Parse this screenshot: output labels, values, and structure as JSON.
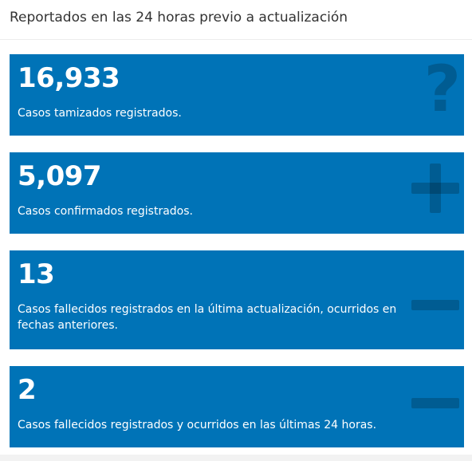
{
  "header": {
    "title": "Reportados en las 24 horas previo a actualización"
  },
  "cards": [
    {
      "value": "16,933",
      "description": "Casos tamizados registrados.",
      "icon": "question-icon"
    },
    {
      "value": "5,097",
      "description": "Casos confirmados registrados.",
      "icon": "plus-icon"
    },
    {
      "value": "13",
      "description": "Casos fallecidos registrados en la última actualización, ocurridos en fechas anteriores.",
      "icon": "minus-icon"
    },
    {
      "value": "2",
      "description": "Casos fallecidos registrados y ocurridos en las últimas 24 horas.",
      "icon": "minus-icon"
    }
  ],
  "colors": {
    "card_background": "#0073b7",
    "header_text": "#333333"
  },
  "icon_glyphs": {
    "question": "?"
  }
}
